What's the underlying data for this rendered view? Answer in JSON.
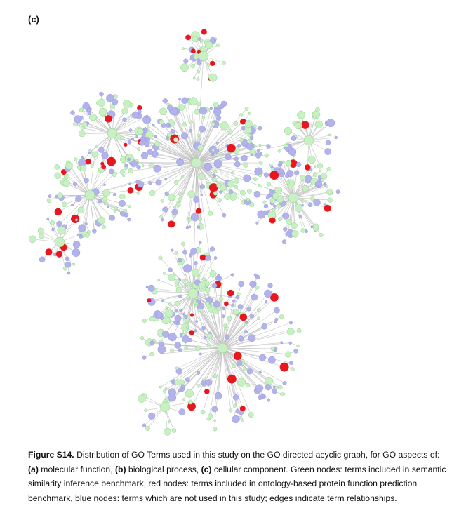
{
  "panel_label": "(c)",
  "caption": {
    "figure_label": "Figure S14.",
    "seg1": " Distribution of GO Terms used in this study on the GO directed acyclic graph, for GO aspects of: ",
    "a_label": "(a)",
    "seg2": " molecular function, ",
    "b_label": "(b)",
    "seg3": " biological process, ",
    "c_label": "(c)",
    "seg4": " cellular component. Green nodes: terms included in semantic similarity inference benchmark, red nodes: terms included in ontology-based protein function prediction benchmark, blue nodes: terms which are not used in this study; edges indicate term relationships."
  },
  "colors": {
    "green_node": "#c9f0c4",
    "green_stroke": "#8fd487",
    "blue_node": "#b3b3ec",
    "blue_stroke": "#8d8ddb",
    "red_node": "#e8161d",
    "edge": "#c4c4c4"
  }
}
